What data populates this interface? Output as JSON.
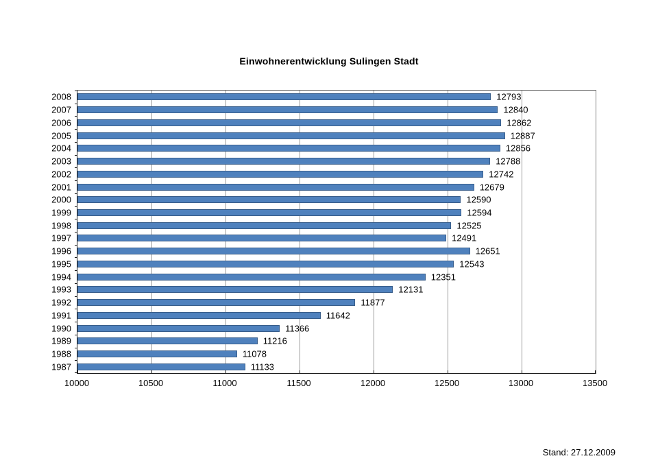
{
  "chart_data": {
    "type": "bar",
    "orientation": "horizontal",
    "title": "Einwohnerentwicklung Sulingen Stadt",
    "categories": [
      "2008",
      "2007",
      "2006",
      "2005",
      "2004",
      "2003",
      "2002",
      "2001",
      "2000",
      "1999",
      "1998",
      "1997",
      "1996",
      "1995",
      "1994",
      "1993",
      "1992",
      "1991",
      "1990",
      "1989",
      "1988",
      "1987"
    ],
    "values": [
      12793,
      12840,
      12862,
      12887,
      12856,
      12788,
      12742,
      12679,
      12590,
      12594,
      12525,
      12491,
      12651,
      12543,
      12351,
      12131,
      11877,
      11642,
      11366,
      11216,
      11078,
      11133
    ],
    "data_labels": true,
    "xlabel": "",
    "ylabel": "",
    "xlim": [
      10000,
      13500
    ],
    "xticks": [
      10000,
      10500,
      11000,
      11500,
      12000,
      12500,
      13000,
      13500
    ],
    "grid": "vertical",
    "legend": "none",
    "colors": {
      "bar_fill": "#4f81bd",
      "bar_border": "#385d8a",
      "gridline": "#9b9b9b",
      "axis": "#1a1a1a",
      "text": "#000000",
      "background": "#ffffff"
    }
  },
  "footer": {
    "text": "Stand: 27.12.2009"
  }
}
